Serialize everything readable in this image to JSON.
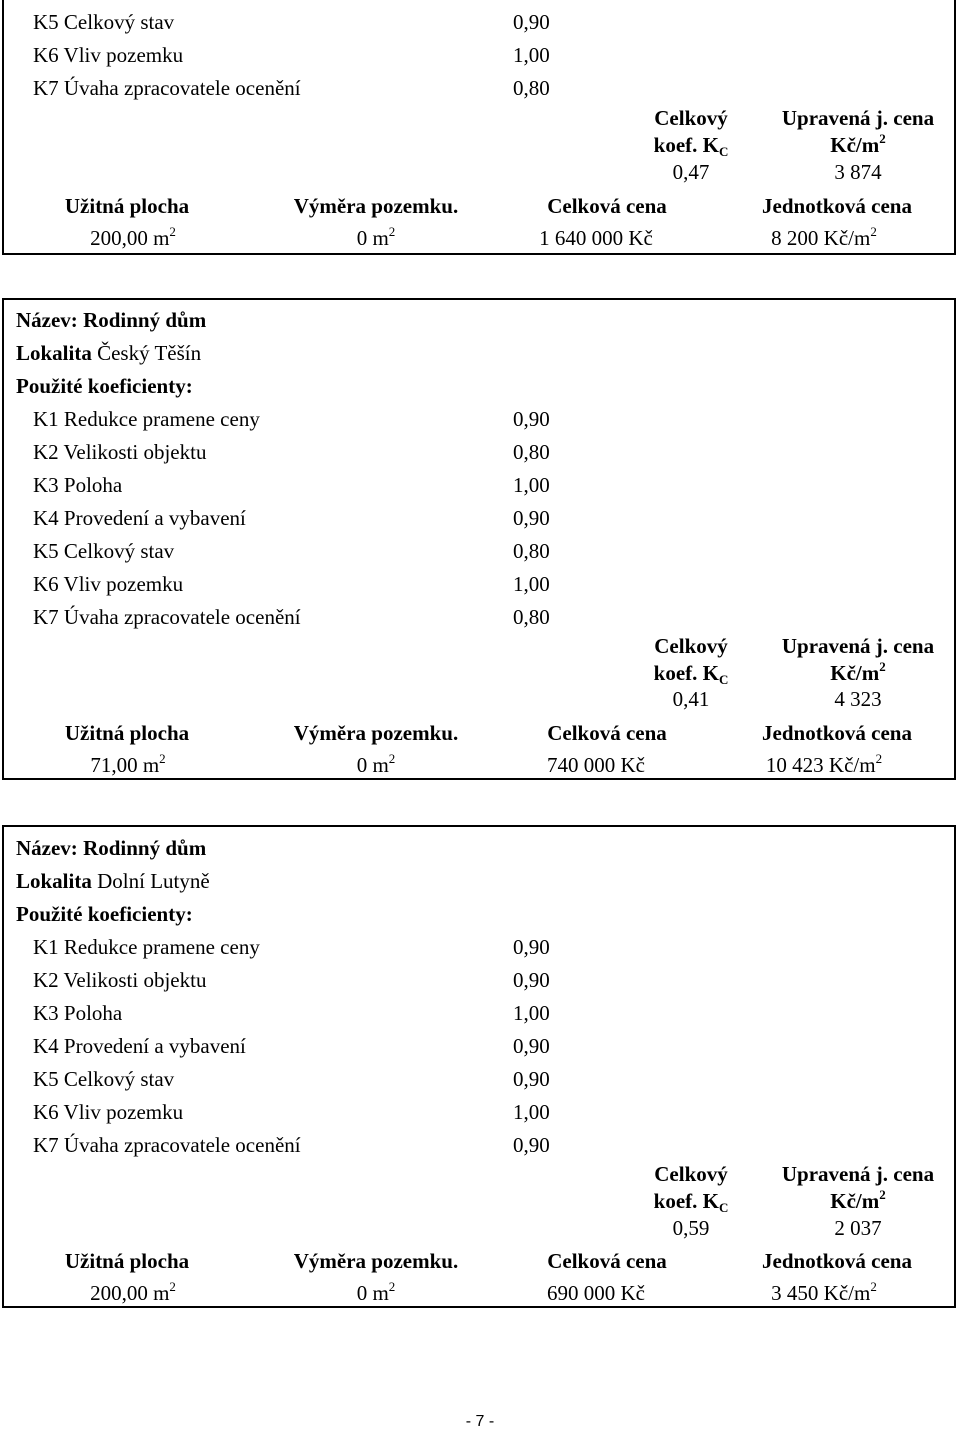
{
  "labels": {
    "name": "Název:",
    "locality": "Lokalita",
    "coefficients_header": "Použité koeficienty:",
    "overall_coef_line1": "Celkový",
    "overall_coef_line2": "koef. K",
    "overall_coef_sub": "C",
    "adjusted_price_line1": "Upravená j. cena",
    "adjusted_price_line2": "Kč/m",
    "usable_area": "Užitná plocha",
    "land_area": "Výměra pozemku.",
    "total_price": "Celková cena",
    "unit_price": "Jednotková cena",
    "sup2": "2"
  },
  "records": [
    {
      "coefficients": [
        {
          "label": "K5 Celkový stav",
          "value": "0,90"
        },
        {
          "label": "K6 Vliv pozemku",
          "value": "1,00"
        },
        {
          "label": "K7 Úvaha zpracovatele ocenění",
          "value": "0,80"
        }
      ],
      "overall_coef": "0,47",
      "adjusted_price": "3 874",
      "usable_area": "200,00 m",
      "land_area": "0 m",
      "total_price": "1 640 000 Kč",
      "unit_price": "8 200 Kč/m"
    },
    {
      "name": "Rodinný dům",
      "locality": "Český Těšín",
      "coefficients": [
        {
          "label": "K1 Redukce pramene ceny",
          "value": "0,90"
        },
        {
          "label": "K2 Velikosti objektu",
          "value": "0,80"
        },
        {
          "label": "K3 Poloha",
          "value": "1,00"
        },
        {
          "label": "K4 Provedení a vybavení",
          "value": "0,90"
        },
        {
          "label": "K5 Celkový stav",
          "value": "0,80"
        },
        {
          "label": "K6 Vliv pozemku",
          "value": "1,00"
        },
        {
          "label": "K7 Úvaha zpracovatele ocenění",
          "value": "0,80"
        }
      ],
      "overall_coef": "0,41",
      "adjusted_price": "4 323",
      "usable_area": "71,00 m",
      "land_area": "0 m",
      "total_price": "740 000 Kč",
      "unit_price": "10 423 Kč/m"
    },
    {
      "name": "Rodinný dům",
      "locality": "Dolní Lutyně",
      "coefficients": [
        {
          "label": "K1 Redukce pramene ceny",
          "value": "0,90"
        },
        {
          "label": "K2 Velikosti objektu",
          "value": "0,90"
        },
        {
          "label": "K3 Poloha",
          "value": "1,00"
        },
        {
          "label": "K4 Provedení a vybavení",
          "value": "0,90"
        },
        {
          "label": "K5 Celkový stav",
          "value": "0,90"
        },
        {
          "label": "K6 Vliv pozemku",
          "value": "1,00"
        },
        {
          "label": "K7 Úvaha zpracovatele ocenění",
          "value": "0,90"
        }
      ],
      "overall_coef": "0,59",
      "adjusted_price": "2 037",
      "usable_area": "200,00 m",
      "land_area": "0 m",
      "total_price": "690 000 Kč",
      "unit_price": "3 450 Kč/m"
    }
  ],
  "footer": {
    "page_number": "- 7 -"
  }
}
